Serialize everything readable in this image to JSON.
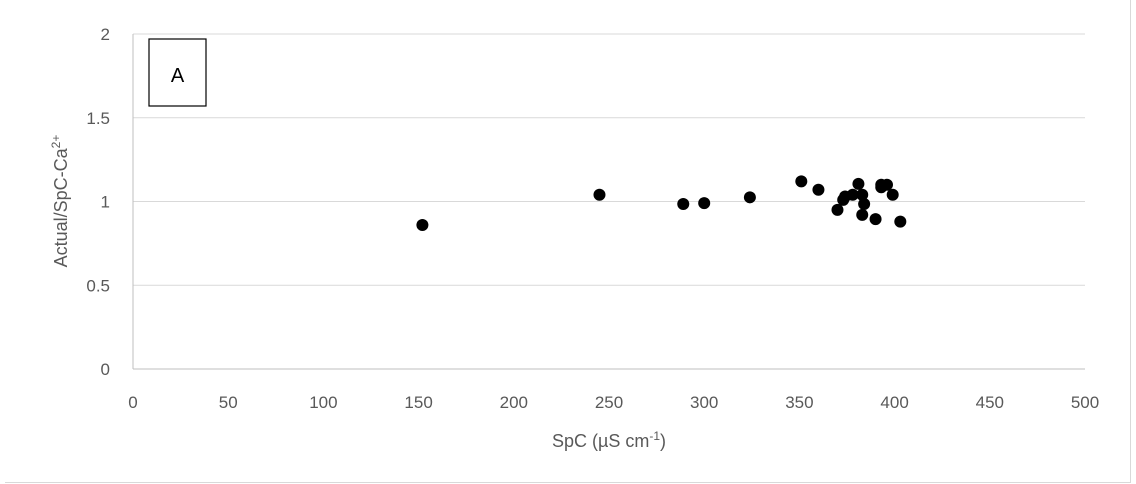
{
  "chart_data": {
    "type": "scatter",
    "panel_label": "A",
    "xlabel_base": "SpC (µS cm",
    "xlabel_sup": "-1",
    "xlabel_end": ")",
    "ylabel_base": "Actual/SpC-Ca",
    "ylabel_sup": "2+",
    "xlim": [
      0,
      500
    ],
    "ylim": [
      0,
      2
    ],
    "x_ticks": [
      "0",
      "50",
      "100",
      "150",
      "200",
      "250",
      "300",
      "350",
      "400",
      "450",
      "500"
    ],
    "y_ticks": [
      "0",
      "0.5",
      "1",
      "1.5",
      "2"
    ],
    "grid": "horizontal",
    "marker_color": "#000000",
    "points": [
      {
        "x": 152,
        "y": 0.86
      },
      {
        "x": 245,
        "y": 1.04
      },
      {
        "x": 289,
        "y": 0.985
      },
      {
        "x": 300,
        "y": 0.99
      },
      {
        "x": 324,
        "y": 1.025
      },
      {
        "x": 351,
        "y": 1.12
      },
      {
        "x": 360,
        "y": 1.07
      },
      {
        "x": 370,
        "y": 0.95
      },
      {
        "x": 373,
        "y": 1.01
      },
      {
        "x": 374,
        "y": 1.03
      },
      {
        "x": 378,
        "y": 1.04
      },
      {
        "x": 381,
        "y": 1.105
      },
      {
        "x": 383,
        "y": 1.04
      },
      {
        "x": 383,
        "y": 0.92
      },
      {
        "x": 384,
        "y": 0.985
      },
      {
        "x": 390,
        "y": 0.895
      },
      {
        "x": 393,
        "y": 1.1
      },
      {
        "x": 393,
        "y": 1.085
      },
      {
        "x": 396,
        "y": 1.1
      },
      {
        "x": 399,
        "y": 1.04
      },
      {
        "x": 403,
        "y": 0.88
      }
    ]
  }
}
